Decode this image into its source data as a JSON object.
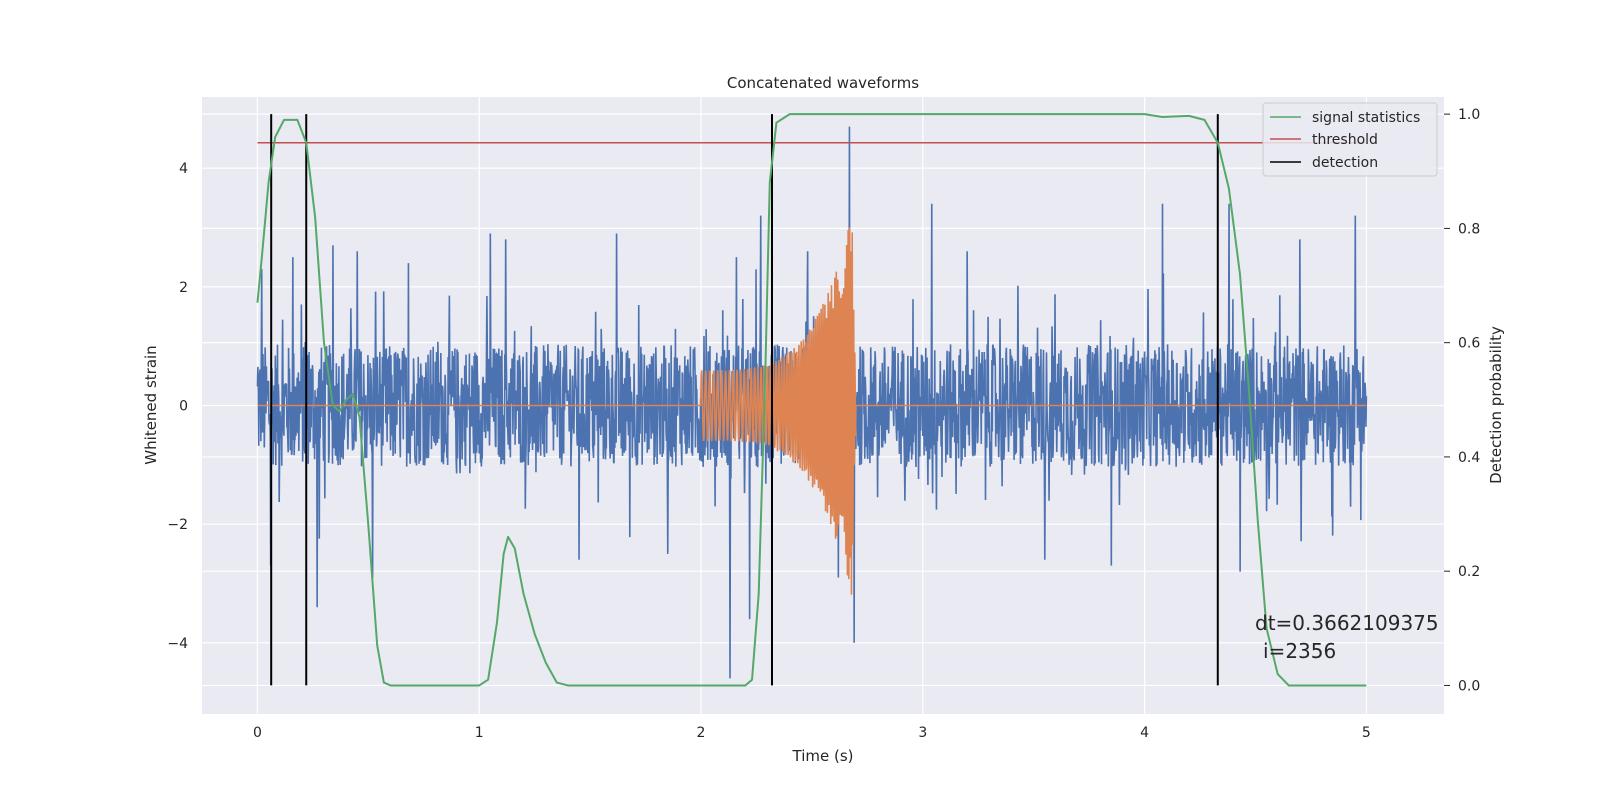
{
  "chart_data": {
    "type": "line",
    "title": "Concatenated waveforms",
    "xlabel": "Time (s)",
    "ylabel": "Whitened strain",
    "y2label": "Detection probability",
    "xlim": [
      -0.25,
      5.35
    ],
    "ylim": [
      -5.2,
      5.2
    ],
    "y2lim": [
      -0.05,
      1.03
    ],
    "xticks": [
      "0",
      "1",
      "2",
      "3",
      "4",
      "5"
    ],
    "yticks": [
      "−4",
      "−2",
      "0",
      "2",
      "4"
    ],
    "y2ticks": [
      "0.0",
      "0.2",
      "0.4",
      "0.6",
      "0.8",
      "1.0"
    ],
    "grid": true,
    "legend_position": "top-right",
    "legend": [
      {
        "label": "signal statistics",
        "color": "#55a868"
      },
      {
        "label": "threshold",
        "color": "#c44e52"
      },
      {
        "label": "detection",
        "color": "#000000"
      }
    ],
    "series": [
      {
        "name": "",
        "role": "whitened strain noise",
        "color": "#4c72b0",
        "x_range": [
          0,
          5
        ],
        "typical_amplitude": 0.9,
        "peak_points": [
          [
            0.02,
            2.3
          ],
          [
            0.06,
            -2.7
          ],
          [
            0.16,
            2.5
          ],
          [
            0.27,
            -3.4
          ],
          [
            0.34,
            2.7
          ],
          [
            0.45,
            2.6
          ],
          [
            0.52,
            -2.9
          ],
          [
            0.68,
            2.4
          ],
          [
            1.05,
            2.9
          ],
          [
            1.12,
            2.8
          ],
          [
            1.45,
            -2.6
          ],
          [
            1.62,
            2.9
          ],
          [
            1.85,
            -2.5
          ],
          [
            2.13,
            -4.6
          ],
          [
            2.16,
            2.5
          ],
          [
            2.22,
            -3.6
          ],
          [
            2.27,
            3.2
          ],
          [
            2.48,
            2.6
          ],
          [
            2.62,
            -2.9
          ],
          [
            2.67,
            4.7
          ],
          [
            2.69,
            -4.0
          ],
          [
            3.04,
            3.4
          ],
          [
            3.2,
            2.6
          ],
          [
            3.55,
            -2.6
          ],
          [
            3.85,
            -2.7
          ],
          [
            4.08,
            3.4
          ],
          [
            4.38,
            3.4
          ],
          [
            4.43,
            -2.8
          ],
          [
            4.7,
            2.8
          ],
          [
            4.95,
            3.2
          ]
        ]
      },
      {
        "name": "",
        "role": "injected chirp",
        "color": "#dd8452",
        "x_range": [
          0,
          5
        ],
        "chirp_start": 2.0,
        "chirp_end": 2.68,
        "amplitude_start": 0.6,
        "amplitude_peak": 3.2,
        "amplitude_min": -3.5
      },
      {
        "name": "signal statistics",
        "axis": "right",
        "color": "#55a868",
        "points": [
          [
            0,
            0.67
          ],
          [
            0.02,
            0.75
          ],
          [
            0.05,
            0.88
          ],
          [
            0.08,
            0.96
          ],
          [
            0.12,
            0.99
          ],
          [
            0.18,
            0.99
          ],
          [
            0.22,
            0.95
          ],
          [
            0.26,
            0.82
          ],
          [
            0.3,
            0.6
          ],
          [
            0.34,
            0.49
          ],
          [
            0.37,
            0.48
          ],
          [
            0.4,
            0.5
          ],
          [
            0.43,
            0.51
          ],
          [
            0.46,
            0.47
          ],
          [
            0.5,
            0.28
          ],
          [
            0.54,
            0.07
          ],
          [
            0.57,
            0.005
          ],
          [
            0.6,
            0.0
          ],
          [
            1.0,
            0.0
          ],
          [
            1.04,
            0.01
          ],
          [
            1.08,
            0.11
          ],
          [
            1.11,
            0.23
          ],
          [
            1.13,
            0.26
          ],
          [
            1.16,
            0.24
          ],
          [
            1.2,
            0.16
          ],
          [
            1.25,
            0.09
          ],
          [
            1.3,
            0.04
          ],
          [
            1.35,
            0.005
          ],
          [
            1.4,
            0.0
          ],
          [
            2.2,
            0.0
          ],
          [
            2.23,
            0.01
          ],
          [
            2.26,
            0.16
          ],
          [
            2.29,
            0.55
          ],
          [
            2.31,
            0.88
          ],
          [
            2.34,
            0.985
          ],
          [
            2.4,
            1.0
          ],
          [
            4.0,
            1.0
          ],
          [
            4.08,
            0.995
          ],
          [
            4.2,
            0.997
          ],
          [
            4.27,
            0.99
          ],
          [
            4.33,
            0.95
          ],
          [
            4.38,
            0.87
          ],
          [
            4.43,
            0.72
          ],
          [
            4.47,
            0.52
          ],
          [
            4.51,
            0.29
          ],
          [
            4.55,
            0.1
          ],
          [
            4.6,
            0.02
          ],
          [
            4.65,
            0.0
          ],
          [
            5.0,
            0.0
          ]
        ]
      },
      {
        "name": "threshold",
        "axis": "right",
        "color": "#c44e52",
        "points": [
          [
            0,
            0.95
          ],
          [
            5.0,
            0.95
          ]
        ]
      }
    ],
    "detections": [
      0.062,
      0.22,
      2.32,
      4.33
    ],
    "annotation": {
      "line1": "dt=0.3662109375",
      "line2": "i=2356",
      "x": 4.5,
      "y": -4.3
    }
  }
}
